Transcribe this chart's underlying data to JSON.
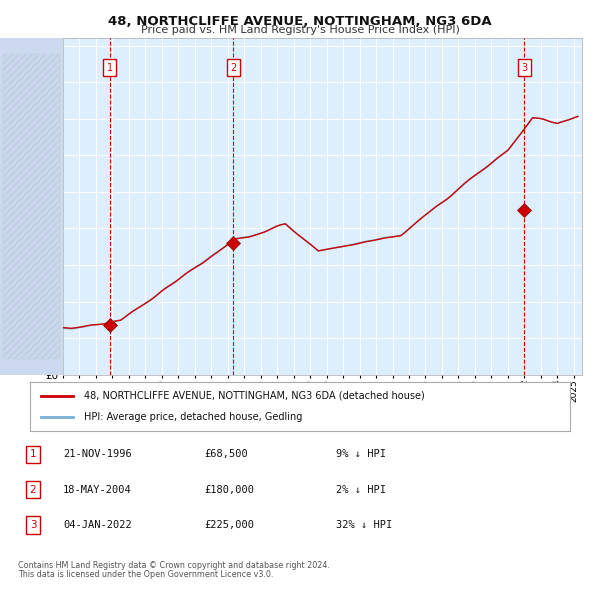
{
  "title": "48, NORTHCLIFFE AVENUE, NOTTINGHAM, NG3 6DA",
  "subtitle": "Price paid vs. HM Land Registry's House Price Index (HPI)",
  "legend_line1": "48, NORTHCLIFFE AVENUE, NOTTINGHAM, NG3 6DA (detached house)",
  "legend_line2": "HPI: Average price, detached house, Gedling",
  "sale_dates": [
    "21-NOV-1996",
    "18-MAY-2004",
    "04-JAN-2022"
  ],
  "sale_prices": [
    68500,
    180000,
    225000
  ],
  "sale_labels": [
    "1",
    "2",
    "3"
  ],
  "sale_hpi_pct": [
    "9% ↓ HPI",
    "2% ↓ HPI",
    "32% ↓ HPI"
  ],
  "footnote1": "Contains HM Land Registry data © Crown copyright and database right 2024.",
  "footnote2": "This data is licensed under the Open Government Licence v3.0.",
  "hpi_color": "#7ab0d4",
  "sale_line_color": "#cc0000",
  "sale_marker_color": "#cc0000",
  "background_plot": "#ddeeff",
  "grid_color": "#ffffff",
  "ylim": [
    0,
    460000
  ],
  "yticks": [
    0,
    50000,
    100000,
    150000,
    200000,
    250000,
    300000,
    350000,
    400000,
    450000
  ]
}
